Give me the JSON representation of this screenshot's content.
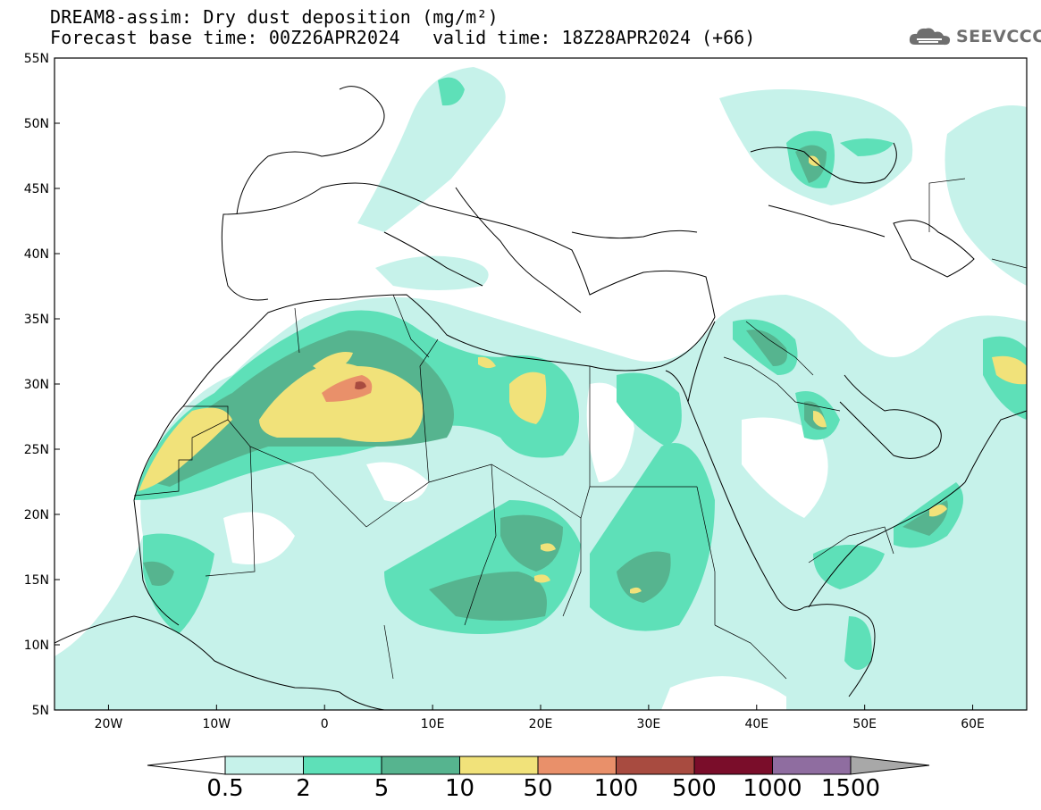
{
  "header": {
    "line1": "DREAM8-assim: Dry dust deposition (mg/m²)",
    "line2_left": "Forecast base time: 00Z26APR2024",
    "line2_right": "valid time: 18Z28APR2024 (+66)"
  },
  "logo": {
    "text": "SEEVCCC",
    "icon": "cloud-icon"
  },
  "map": {
    "lat_ticks": [
      "55N",
      "50N",
      "45N",
      "40N",
      "35N",
      "30N",
      "25N",
      "20N",
      "15N",
      "10N",
      "5N"
    ],
    "lon_ticks": [
      "20W",
      "10W",
      "0",
      "10E",
      "20E",
      "30E",
      "40E",
      "50E",
      "60E"
    ],
    "lat_range": [
      5,
      55
    ],
    "lon_range": [
      -25,
      65
    ]
  },
  "colorbar": {
    "labels": [
      "0.5",
      "2",
      "5",
      "10",
      "50",
      "100",
      "500",
      "1000",
      "1500"
    ],
    "colors": [
      "#c6f2ea",
      "#5ee0b8",
      "#56b48f",
      "#f1e27a",
      "#e9906a",
      "#a84b40",
      "#7a0d2a",
      "#8f6da0",
      "#a8a8a8"
    ],
    "below_color": "#ffffff"
  }
}
